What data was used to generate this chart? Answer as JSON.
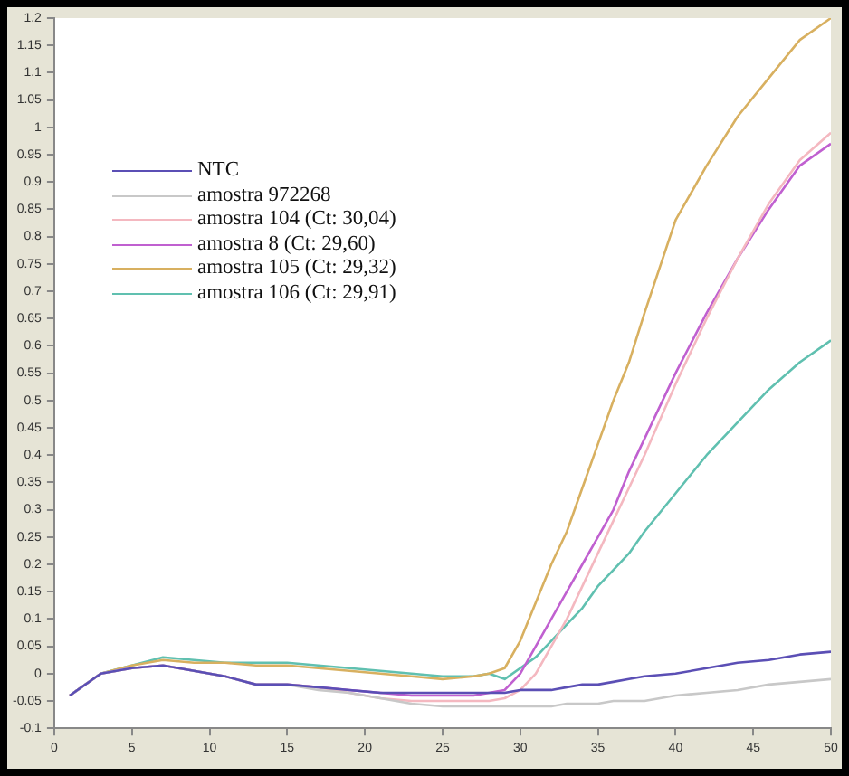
{
  "chart_data": {
    "type": "line",
    "x": [
      1,
      3,
      5,
      7,
      9,
      11,
      13,
      15,
      17,
      19,
      21,
      23,
      25,
      27,
      28,
      29,
      30,
      31,
      32,
      33,
      34,
      35,
      36,
      37,
      38,
      40,
      42,
      44,
      46,
      48,
      50
    ],
    "series": [
      {
        "name": "NTC",
        "color": "#5b4fb5",
        "values": [
          -0.04,
          0,
          0.01,
          0.015,
          0.005,
          -0.005,
          -0.02,
          -0.02,
          -0.025,
          -0.03,
          -0.035,
          -0.035,
          -0.035,
          -0.035,
          -0.035,
          -0.035,
          -0.03,
          -0.03,
          -0.03,
          -0.025,
          -0.02,
          -0.02,
          -0.015,
          -0.01,
          -0.005,
          0,
          0.01,
          0.02,
          0.025,
          0.035,
          0.04
        ]
      },
      {
        "name": "amostra 972268",
        "color": "#c8c8c8",
        "values": [
          -0.04,
          0,
          0.01,
          0.015,
          0.005,
          -0.005,
          -0.02,
          -0.02,
          -0.03,
          -0.035,
          -0.045,
          -0.055,
          -0.06,
          -0.06,
          -0.06,
          -0.06,
          -0.06,
          -0.06,
          -0.06,
          -0.055,
          -0.055,
          -0.055,
          -0.05,
          -0.05,
          -0.05,
          -0.04,
          -0.035,
          -0.03,
          -0.02,
          -0.015,
          -0.01
        ]
      },
      {
        "name": "amostra 104 (Ct: 30,04)",
        "color": "#f4b8c0",
        "values": [
          -0.04,
          0,
          0.01,
          0.015,
          0.005,
          -0.005,
          -0.02,
          -0.02,
          -0.025,
          -0.035,
          -0.045,
          -0.05,
          -0.05,
          -0.05,
          -0.05,
          -0.045,
          -0.03,
          0,
          0.05,
          0.1,
          0.16,
          0.22,
          0.28,
          0.34,
          0.4,
          0.53,
          0.65,
          0.76,
          0.86,
          0.94,
          0.99
        ]
      },
      {
        "name": "amostra 8 (Ct: 29,60)",
        "color": "#c060d0",
        "values": [
          -0.04,
          0,
          0.01,
          0.015,
          0.005,
          -0.005,
          -0.02,
          -0.02,
          -0.025,
          -0.03,
          -0.035,
          -0.04,
          -0.04,
          -0.04,
          -0.035,
          -0.03,
          0,
          0.05,
          0.1,
          0.15,
          0.2,
          0.25,
          0.3,
          0.37,
          0.43,
          0.55,
          0.66,
          0.76,
          0.85,
          0.93,
          0.97
        ]
      },
      {
        "name": "amostra 105 (Ct: 29,32)",
        "color": "#d8b060",
        "values": [
          -0.04,
          0,
          0.015,
          0.025,
          0.02,
          0.02,
          0.015,
          0.015,
          0.01,
          0.005,
          0,
          -0.005,
          -0.01,
          -0.005,
          0,
          0.01,
          0.06,
          0.13,
          0.2,
          0.26,
          0.34,
          0.42,
          0.5,
          0.57,
          0.66,
          0.83,
          0.93,
          1.02,
          1.09,
          1.16,
          1.2
        ]
      },
      {
        "name": "amostra 106 (Ct: 29,91)",
        "color": "#60c0b0",
        "values": [
          -0.04,
          0,
          0.015,
          0.03,
          0.025,
          0.02,
          0.02,
          0.02,
          0.015,
          0.01,
          0.005,
          0,
          -0.005,
          -0.005,
          0,
          -0.01,
          0.01,
          0.03,
          0.06,
          0.09,
          0.12,
          0.16,
          0.19,
          0.22,
          0.26,
          0.33,
          0.4,
          0.46,
          0.52,
          0.57,
          0.61
        ]
      }
    ],
    "xlim": [
      0,
      50
    ],
    "xticks": [
      0,
      5,
      10,
      15,
      20,
      25,
      30,
      35,
      40,
      45,
      50
    ],
    "ylim": [
      -0.1,
      1.2
    ],
    "yticks": [
      -0.1,
      -0.05,
      0,
      0.05,
      0.1,
      0.15,
      0.2,
      0.25,
      0.3,
      0.35,
      0.4,
      0.45,
      0.5,
      0.55,
      0.6,
      0.65,
      0.7,
      0.75,
      0.8,
      0.85,
      0.9,
      0.95,
      1,
      1.05,
      1.1,
      1.15,
      1.2
    ],
    "grid": false,
    "legend": "top left",
    "marker": "none",
    "line_style": "solid"
  }
}
